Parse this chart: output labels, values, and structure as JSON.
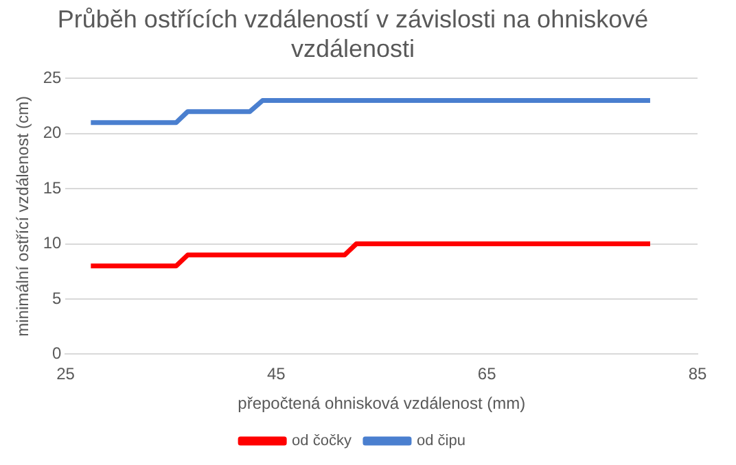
{
  "chart_data": {
    "type": "line",
    "title": "Průběh ostřících vzdáleností v závislosti na ohniskové vzdálenosti",
    "xlabel": "přepočtená ohnisková vzdálenost (mm)",
    "ylabel": "minimální ostřící vzdálenost (cm)",
    "xlim": [
      25,
      85
    ],
    "xticks": [
      25,
      45,
      65,
      85
    ],
    "ylim": [
      0,
      25
    ],
    "yticks": [
      0,
      5,
      10,
      15,
      20,
      25
    ],
    "grid": "y",
    "legend": "bottom",
    "marker": "none",
    "series": [
      {
        "name": "od čočky",
        "color": "#ff0000",
        "x": [
          27.4,
          35.5,
          36.6,
          51.5,
          52.6,
          80.5
        ],
        "values": [
          8,
          8,
          9,
          9,
          10,
          10
        ]
      },
      {
        "name": "od čipu",
        "color": "#4a7fcf",
        "x": [
          27.4,
          35.5,
          36.6,
          42.5,
          43.7,
          80.5
        ],
        "values": [
          21,
          21,
          22,
          22,
          23,
          23
        ]
      }
    ]
  }
}
